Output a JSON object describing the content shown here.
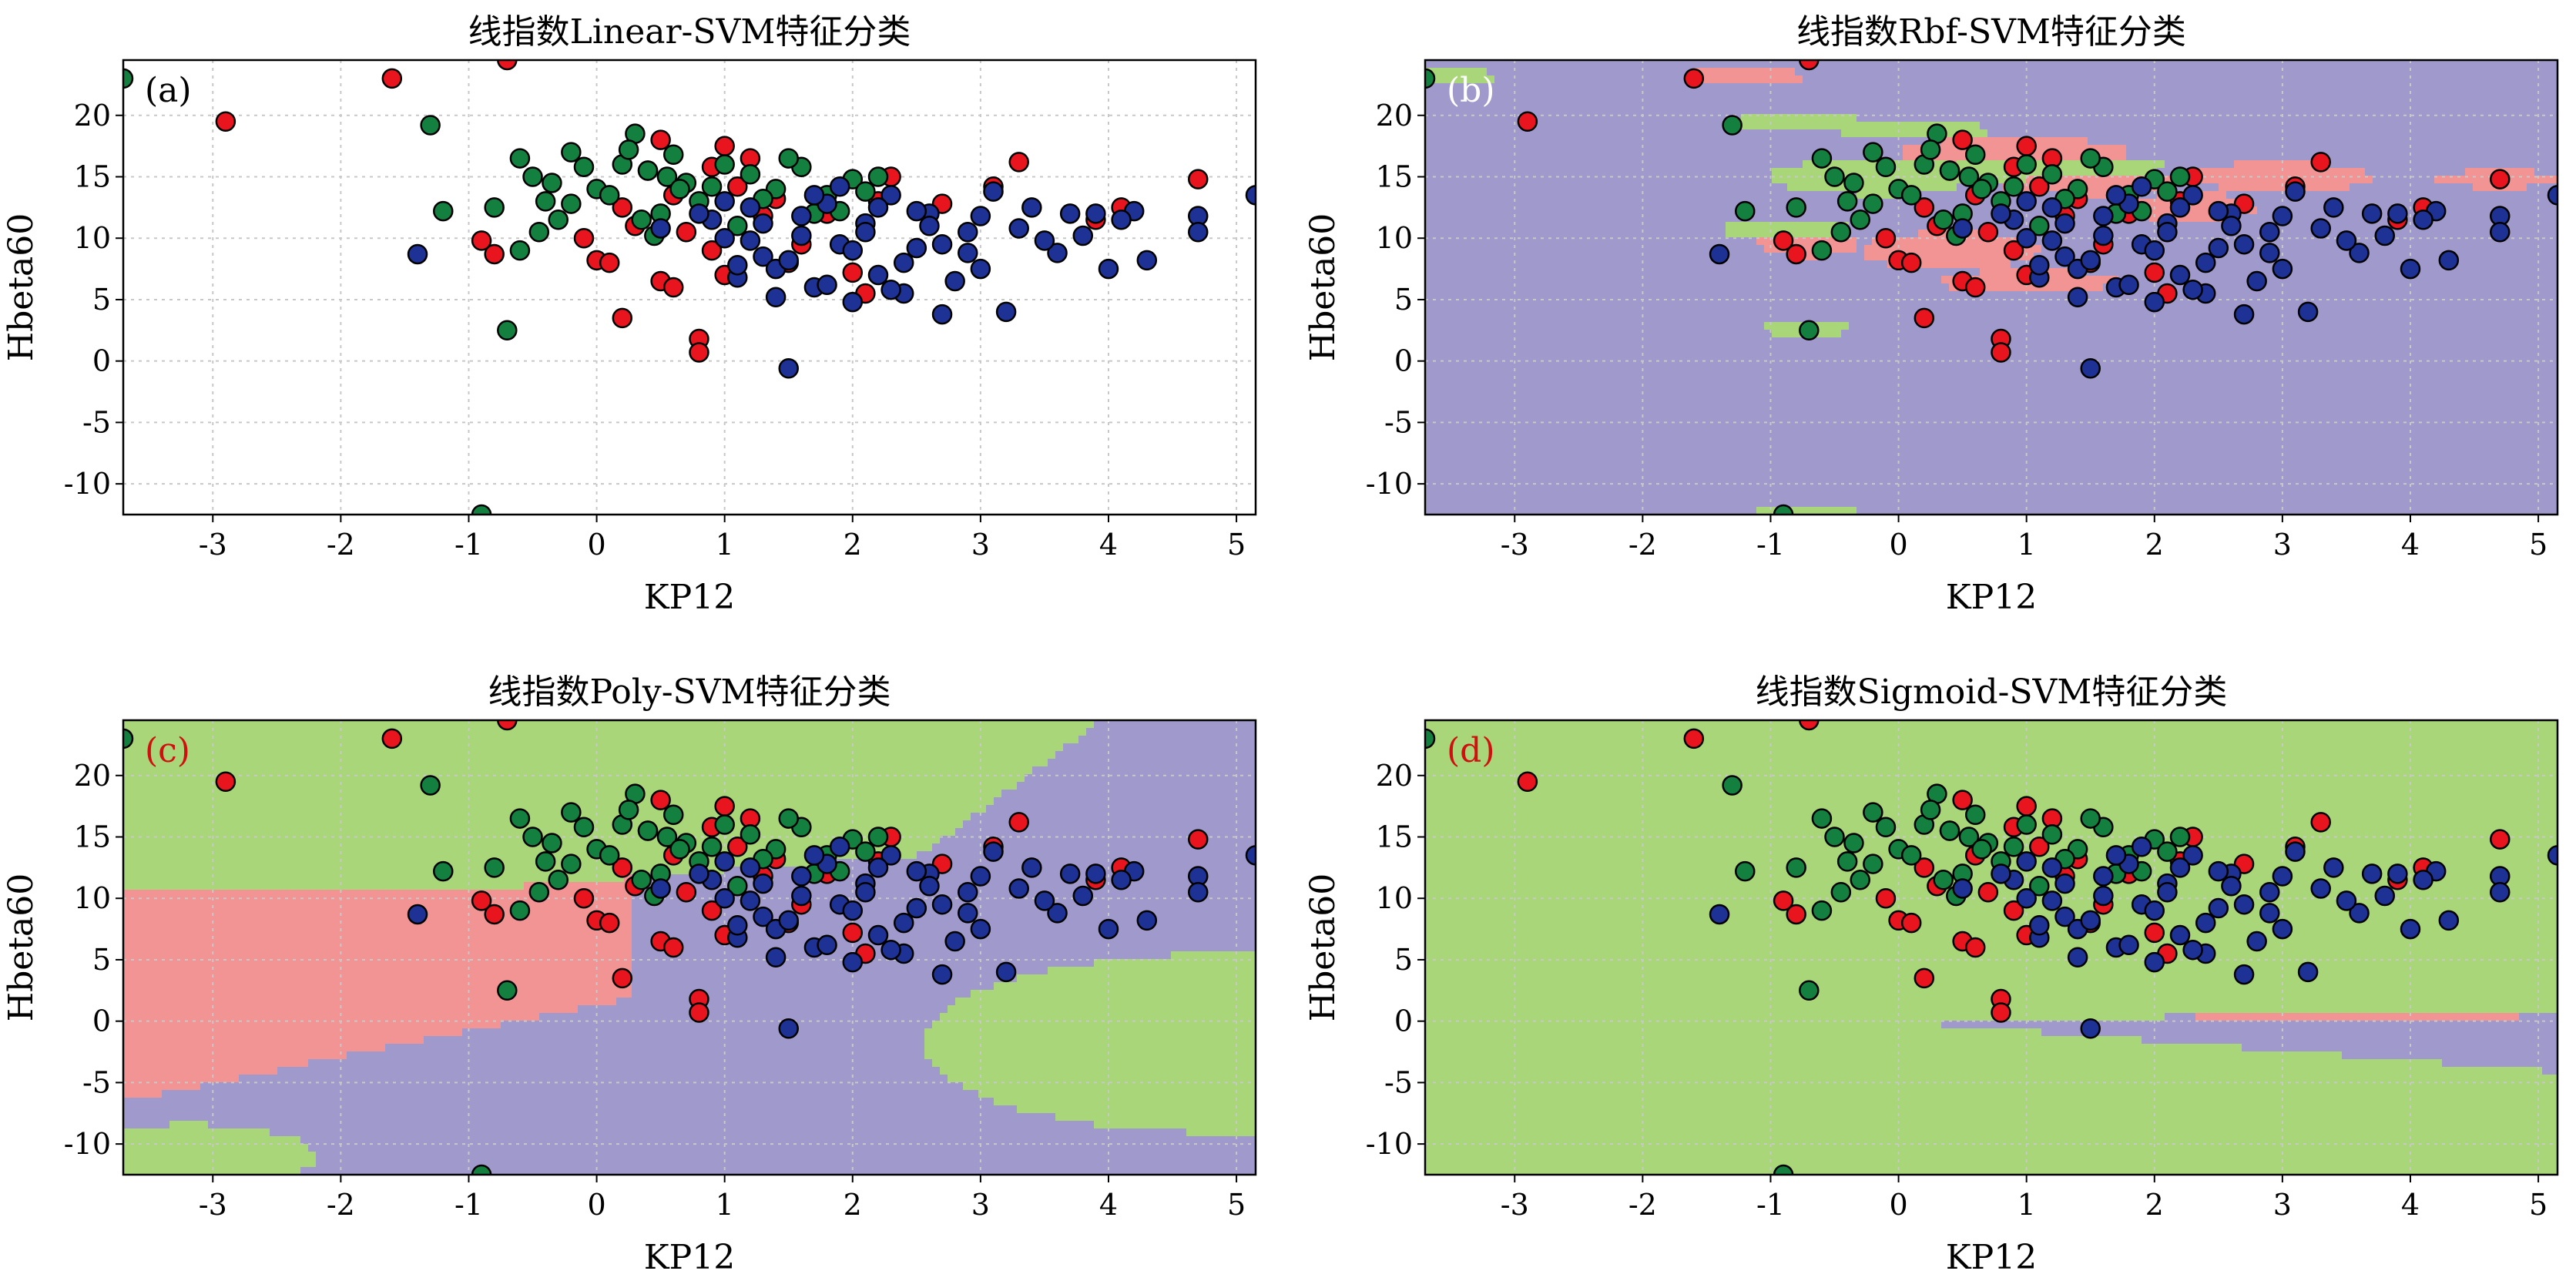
{
  "figure": {
    "colors": {
      "red_class": "#E8141E",
      "green_class": "#148040",
      "blue_class": "#1E3296",
      "region_red": "#F29494",
      "region_green": "#A8D678",
      "region_blue": "#A099CC",
      "marker_edge": "#000000",
      "grid": "#C8C8C8"
    }
  },
  "chart_data": [
    {
      "type": "scatter",
      "title": "线指数Linear-SVM特征分类",
      "panel_label": "(a)",
      "background": "none",
      "xlabel": "KP12",
      "ylabel": "Hbeta60",
      "xlim": [
        -3.7,
        5.15
      ],
      "ylim": [
        -12.5,
        24.5
      ],
      "xticks": [
        -3,
        -2,
        -1,
        0,
        1,
        2,
        3,
        4,
        5
      ],
      "yticks": [
        -10,
        -5,
        0,
        5,
        10,
        15,
        20
      ],
      "grid": true
    },
    {
      "type": "scatter",
      "title": "线指数Rbf-SVM特征分类",
      "panel_label": "(b)",
      "background": "rbf",
      "xlabel": "KP12",
      "ylabel": "Hbeta60",
      "xlim": [
        -3.7,
        5.15
      ],
      "ylim": [
        -12.5,
        24.5
      ],
      "xticks": [
        -3,
        -2,
        -1,
        0,
        1,
        2,
        3,
        4,
        5
      ],
      "yticks": [
        -10,
        -5,
        0,
        5,
        10,
        15,
        20
      ],
      "grid": true
    },
    {
      "type": "scatter",
      "title": "线指数Poly-SVM特征分类",
      "panel_label": "(c)",
      "background": "poly",
      "xlabel": "KP12",
      "ylabel": "Hbeta60",
      "xlim": [
        -3.7,
        5.15
      ],
      "ylim": [
        -12.5,
        24.5
      ],
      "xticks": [
        -3,
        -2,
        -1,
        0,
        1,
        2,
        3,
        4,
        5
      ],
      "yticks": [
        -10,
        -5,
        0,
        5,
        10,
        15,
        20
      ],
      "grid": true
    },
    {
      "type": "scatter",
      "title": "线指数Sigmoid-SVM特征分类",
      "panel_label": "(d)",
      "background": "sigmoid",
      "xlabel": "KP12",
      "ylabel": "Hbeta60",
      "xlim": [
        -3.7,
        5.15
      ],
      "ylim": [
        -12.5,
        24.5
      ],
      "xticks": [
        -3,
        -2,
        -1,
        0,
        1,
        2,
        3,
        4,
        5
      ],
      "yticks": [
        -10,
        -5,
        0,
        5,
        10,
        15,
        20
      ],
      "grid": true
    }
  ],
  "series": [
    {
      "class": "red",
      "color_key": "red_class",
      "x": [
        -2.9,
        -1.6,
        -0.7,
        -0.9,
        -0.8,
        0.8,
        0.8,
        0.2,
        0.5,
        1.0,
        1.5,
        2.1,
        2.3,
        3.3,
        4.1,
        4.7,
        0.0,
        0.3,
        0.6,
        0.9,
        1.2,
        1.8,
        2.0,
        0.4,
        0.7,
        1.1,
        1.6,
        2.2,
        0.1,
        0.6,
        1.3,
        2.7,
        3.1,
        3.9,
        0.5,
        1.0,
        -0.1,
        0.2,
        0.9,
        1.4
      ],
      "y": [
        19.5,
        23.0,
        24.5,
        9.8,
        8.7,
        1.8,
        0.7,
        3.5,
        6.5,
        7.0,
        8.0,
        5.5,
        15.0,
        16.2,
        12.5,
        14.8,
        8.2,
        11.0,
        13.5,
        9.0,
        16.5,
        12.0,
        7.2,
        15.5,
        10.5,
        14.2,
        9.5,
        13.0,
        8.0,
        6.0,
        11.8,
        12.8,
        14.2,
        11.5,
        18.0,
        17.5,
        10.0,
        12.5,
        15.8,
        13.2
      ]
    },
    {
      "class": "green",
      "color_key": "green_class",
      "x": [
        -3.7,
        -1.3,
        -1.2,
        -0.9,
        -0.7,
        -0.6,
        -0.5,
        -0.4,
        -0.3,
        -0.2,
        0.0,
        0.2,
        0.3,
        0.4,
        0.5,
        0.6,
        0.7,
        0.8,
        1.0,
        1.2,
        1.4,
        1.6,
        1.8,
        2.0,
        2.2,
        -0.8,
        -0.6,
        -0.45,
        -0.2,
        0.1,
        0.35,
        0.55,
        0.9,
        1.1,
        1.3,
        1.5,
        1.7,
        -0.1,
        0.25,
        0.65,
        -0.35,
        1.9,
        2.1,
        0.45
      ],
      "y": [
        23.0,
        19.2,
        12.2,
        -12.5,
        2.5,
        16.5,
        15.0,
        13.0,
        11.5,
        17.0,
        14.0,
        16.0,
        18.5,
        15.5,
        12.0,
        16.8,
        14.5,
        13.0,
        16.0,
        15.2,
        14.0,
        15.8,
        13.5,
        14.8,
        15.0,
        12.5,
        9.0,
        10.5,
        12.8,
        13.5,
        11.5,
        15.0,
        14.2,
        11.0,
        13.2,
        16.5,
        12.0,
        15.8,
        17.2,
        14.0,
        14.5,
        12.2,
        13.8,
        10.2
      ]
    },
    {
      "class": "blue",
      "color_key": "blue_class",
      "x": [
        -1.4,
        1.5,
        5.15,
        4.7,
        4.7,
        4.3,
        4.2,
        4.0,
        3.9,
        3.6,
        3.5,
        3.2,
        3.1,
        3.0,
        2.9,
        2.7,
        2.6,
        2.5,
        2.4,
        2.3,
        2.2,
        2.1,
        2.0,
        1.9,
        1.8,
        1.7,
        1.6,
        1.4,
        1.3,
        1.2,
        1.1,
        1.0,
        0.9,
        3.7,
        3.3,
        2.8,
        2.6,
        2.4,
        2.2,
        2.0,
        1.8,
        1.6,
        1.4,
        1.2,
        1.0,
        2.9,
        2.5,
        2.1,
        1.7,
        1.3,
        1.5,
        1.9,
        2.3,
        2.7,
        3.0,
        3.4,
        3.8,
        4.1,
        1.1,
        0.8,
        0.5
      ],
      "y": [
        8.7,
        -0.6,
        13.5,
        11.8,
        10.5,
        8.2,
        12.2,
        7.5,
        12.0,
        8.8,
        9.8,
        4.0,
        13.8,
        7.5,
        10.5,
        3.8,
        12.0,
        9.2,
        5.5,
        13.5,
        7.0,
        11.2,
        4.8,
        9.5,
        12.8,
        6.0,
        10.2,
        5.2,
        8.5,
        12.5,
        6.8,
        10.0,
        11.5,
        12.0,
        10.8,
        6.5,
        11.0,
        8.0,
        12.5,
        9.0,
        6.2,
        11.8,
        7.5,
        9.8,
        13.0,
        8.8,
        12.2,
        10.5,
        13.5,
        11.2,
        8.2,
        14.2,
        5.8,
        9.5,
        11.8,
        12.5,
        10.2,
        11.5,
        7.8,
        12.0,
        10.8
      ]
    }
  ]
}
